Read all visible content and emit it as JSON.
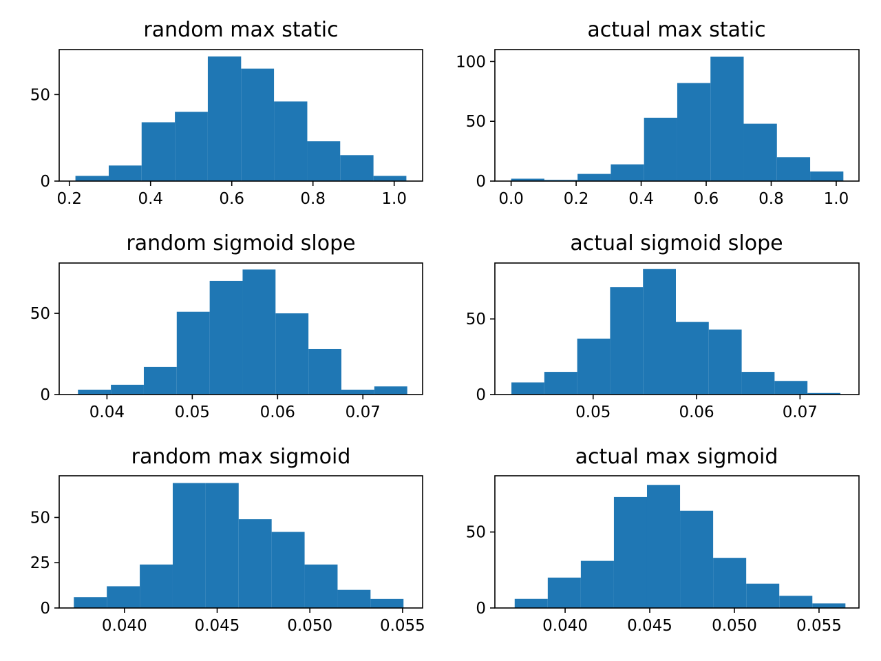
{
  "colors": {
    "bar": "#1f77b4",
    "axes": "#000000",
    "background": "#ffffff"
  },
  "chart_data": [
    {
      "type": "bar",
      "title": "random max static",
      "xlabel": "",
      "ylabel": "",
      "xlim": [
        0.175,
        1.07
      ],
      "ylim": [
        0,
        76
      ],
      "xticks": [
        0.2,
        0.4,
        0.6,
        0.8,
        1.0
      ],
      "xtick_labels": [
        "0.2",
        "0.4",
        "0.6",
        "0.8",
        "1.0"
      ],
      "yticks": [
        0,
        50
      ],
      "ytick_labels": [
        "0",
        "50"
      ],
      "bin_edges": [
        0.215,
        0.297,
        0.378,
        0.46,
        0.541,
        0.623,
        0.704,
        0.786,
        0.867,
        0.949,
        1.03
      ],
      "values": [
        3,
        9,
        34,
        40,
        72,
        65,
        46,
        23,
        15,
        3
      ]
    },
    {
      "type": "bar",
      "title": "actual max static",
      "xlabel": "",
      "ylabel": "",
      "xlim": [
        -0.05,
        1.07
      ],
      "ylim": [
        0,
        110
      ],
      "xticks": [
        0.0,
        0.2,
        0.4,
        0.6,
        0.8,
        1.0
      ],
      "xtick_labels": [
        "0.0",
        "0.2",
        "0.4",
        "0.6",
        "0.8",
        "1.0"
      ],
      "yticks": [
        0,
        50,
        100
      ],
      "ytick_labels": [
        "0",
        "50",
        "100"
      ],
      "bin_edges": [
        0.0,
        0.1022,
        0.2044,
        0.3066,
        0.4088,
        0.511,
        0.6132,
        0.7154,
        0.8176,
        0.9198,
        1.022
      ],
      "values": [
        2,
        1,
        6,
        14,
        53,
        82,
        104,
        48,
        20,
        8
      ]
    },
    {
      "type": "bar",
      "title": "random sigmoid slope",
      "xlabel": "",
      "ylabel": "",
      "xlim": [
        0.0344,
        0.077
      ],
      "ylim": [
        0,
        81
      ],
      "xticks": [
        0.04,
        0.05,
        0.06,
        0.07
      ],
      "xtick_labels": [
        "0.04",
        "0.05",
        "0.06",
        "0.07"
      ],
      "yticks": [
        0,
        50
      ],
      "ytick_labels": [
        "0",
        "50"
      ],
      "bin_edges": [
        0.0366,
        0.04046,
        0.04432,
        0.04818,
        0.05204,
        0.0559,
        0.05976,
        0.06362,
        0.06748,
        0.07134,
        0.0752
      ],
      "values": [
        3,
        6,
        17,
        51,
        70,
        77,
        50,
        28,
        3,
        5
      ]
    },
    {
      "type": "bar",
      "title": "actual sigmoid slope",
      "xlabel": "",
      "ylabel": "",
      "xlim": [
        0.0405,
        0.0757
      ],
      "ylim": [
        0,
        87
      ],
      "xticks": [
        0.05,
        0.06,
        0.07
      ],
      "xtick_labels": [
        "0.05",
        "0.06",
        "0.07"
      ],
      "yticks": [
        0,
        50
      ],
      "ytick_labels": [
        "0",
        "50"
      ],
      "bin_edges": [
        0.0421,
        0.04528,
        0.04846,
        0.05164,
        0.05482,
        0.058,
        0.06118,
        0.06436,
        0.06754,
        0.07072,
        0.0739
      ],
      "values": [
        8,
        15,
        37,
        71,
        83,
        48,
        43,
        15,
        9,
        1
      ]
    },
    {
      "type": "bar",
      "title": "random max sigmoid",
      "xlabel": "",
      "ylabel": "",
      "xlim": [
        0.03648,
        0.05608
      ],
      "ylim": [
        0,
        73
      ],
      "xticks": [
        0.04,
        0.045,
        0.05,
        0.055
      ],
      "xtick_labels": [
        "0.040",
        "0.045",
        "0.050",
        "0.055"
      ],
      "yticks": [
        0,
        25,
        50
      ],
      "ytick_labels": [
        "0",
        "25",
        "50"
      ],
      "bin_edges": [
        0.03727,
        0.039048,
        0.040826,
        0.042604,
        0.044382,
        0.04616,
        0.047938,
        0.049716,
        0.051494,
        0.053272,
        0.05505
      ],
      "values": [
        6,
        12,
        24,
        69,
        69,
        49,
        42,
        24,
        10,
        5
      ]
    },
    {
      "type": "bar",
      "title": "actual max sigmoid",
      "xlabel": "",
      "ylabel": "",
      "xlim": [
        0.03585,
        0.05736
      ],
      "ylim": [
        0,
        87
      ],
      "xticks": [
        0.04,
        0.045,
        0.05,
        0.055
      ],
      "xtick_labels": [
        "0.040",
        "0.045",
        "0.050",
        "0.055"
      ],
      "yticks": [
        0,
        50
      ],
      "ytick_labels": [
        "0",
        "50"
      ],
      "bin_edges": [
        0.03702,
        0.038974,
        0.040928,
        0.042882,
        0.044836,
        0.04679,
        0.048744,
        0.050698,
        0.052652,
        0.054606,
        0.05656
      ],
      "values": [
        6,
        20,
        31,
        73,
        81,
        64,
        33,
        16,
        8,
        3
      ]
    }
  ]
}
